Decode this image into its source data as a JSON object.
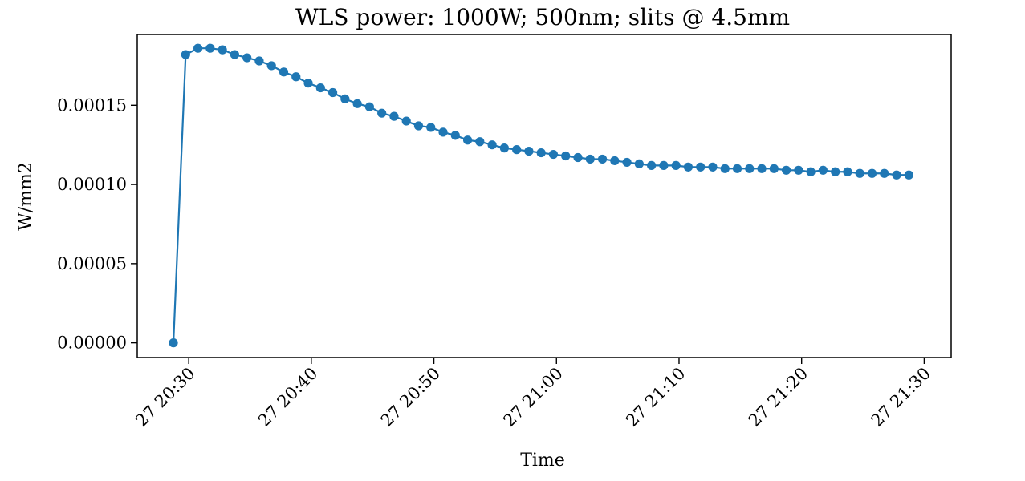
{
  "chart_data": {
    "type": "line",
    "title": "WLS power: 1000W; 500nm; slits @ 4.5mm",
    "xlabel": "Time",
    "ylabel": "W/mm2",
    "grid": false,
    "marker": "circle",
    "color": "#1f77b4",
    "x_tick_labels": [
      "27 20:30",
      "27 20:40",
      "27 20:50",
      "27 21:00",
      "27 21:10",
      "27 21:20",
      "27 21:30"
    ],
    "x_tick_minutes": [
      0,
      10,
      20,
      30,
      40,
      50,
      60
    ],
    "y_ticks": [
      0.0,
      5e-05,
      0.0001,
      0.00015
    ],
    "y_tick_labels": [
      "0.00000",
      "0.00005",
      "0.00010",
      "0.00015"
    ],
    "xlim_minutes": [
      -4.2,
      62.2
    ],
    "ylim": [
      -9.3e-06,
      0.0001947
    ],
    "x_minutes": [
      -1.25,
      -0.25,
      0.75,
      1.75,
      2.75,
      3.75,
      4.75,
      5.75,
      6.75,
      7.75,
      8.75,
      9.75,
      10.75,
      11.75,
      12.75,
      13.75,
      14.75,
      15.75,
      16.75,
      17.75,
      18.75,
      19.75,
      20.75,
      21.75,
      22.75,
      23.75,
      24.75,
      25.75,
      26.75,
      27.75,
      28.75,
      29.75,
      30.75,
      31.75,
      32.75,
      33.75,
      34.75,
      35.75,
      36.75,
      37.75,
      38.75,
      39.75,
      40.75,
      41.75,
      42.75,
      43.75,
      44.75,
      45.75,
      46.75,
      47.75,
      48.75,
      49.75,
      50.75,
      51.75,
      52.75,
      53.75,
      54.75,
      55.75,
      56.75,
      57.75,
      58.75
    ],
    "values": [
      0.0,
      0.000182,
      0.000186,
      0.000186,
      0.000185,
      0.000182,
      0.00018,
      0.000178,
      0.000175,
      0.000171,
      0.000168,
      0.000164,
      0.000161,
      0.000158,
      0.000154,
      0.000151,
      0.000149,
      0.000145,
      0.000143,
      0.00014,
      0.000137,
      0.000136,
      0.000133,
      0.000131,
      0.000128,
      0.000127,
      0.000125,
      0.000123,
      0.000122,
      0.000121,
      0.00012,
      0.000119,
      0.000118,
      0.000117,
      0.000116,
      0.000116,
      0.000115,
      0.000114,
      0.000113,
      0.000112,
      0.000112,
      0.000112,
      0.000111,
      0.000111,
      0.000111,
      0.00011,
      0.00011,
      0.00011,
      0.00011,
      0.00011,
      0.000109,
      0.000109,
      0.000108,
      0.000109,
      0.000108,
      0.000108,
      0.000107,
      0.000107,
      0.000107,
      0.000106,
      0.000106
    ]
  }
}
